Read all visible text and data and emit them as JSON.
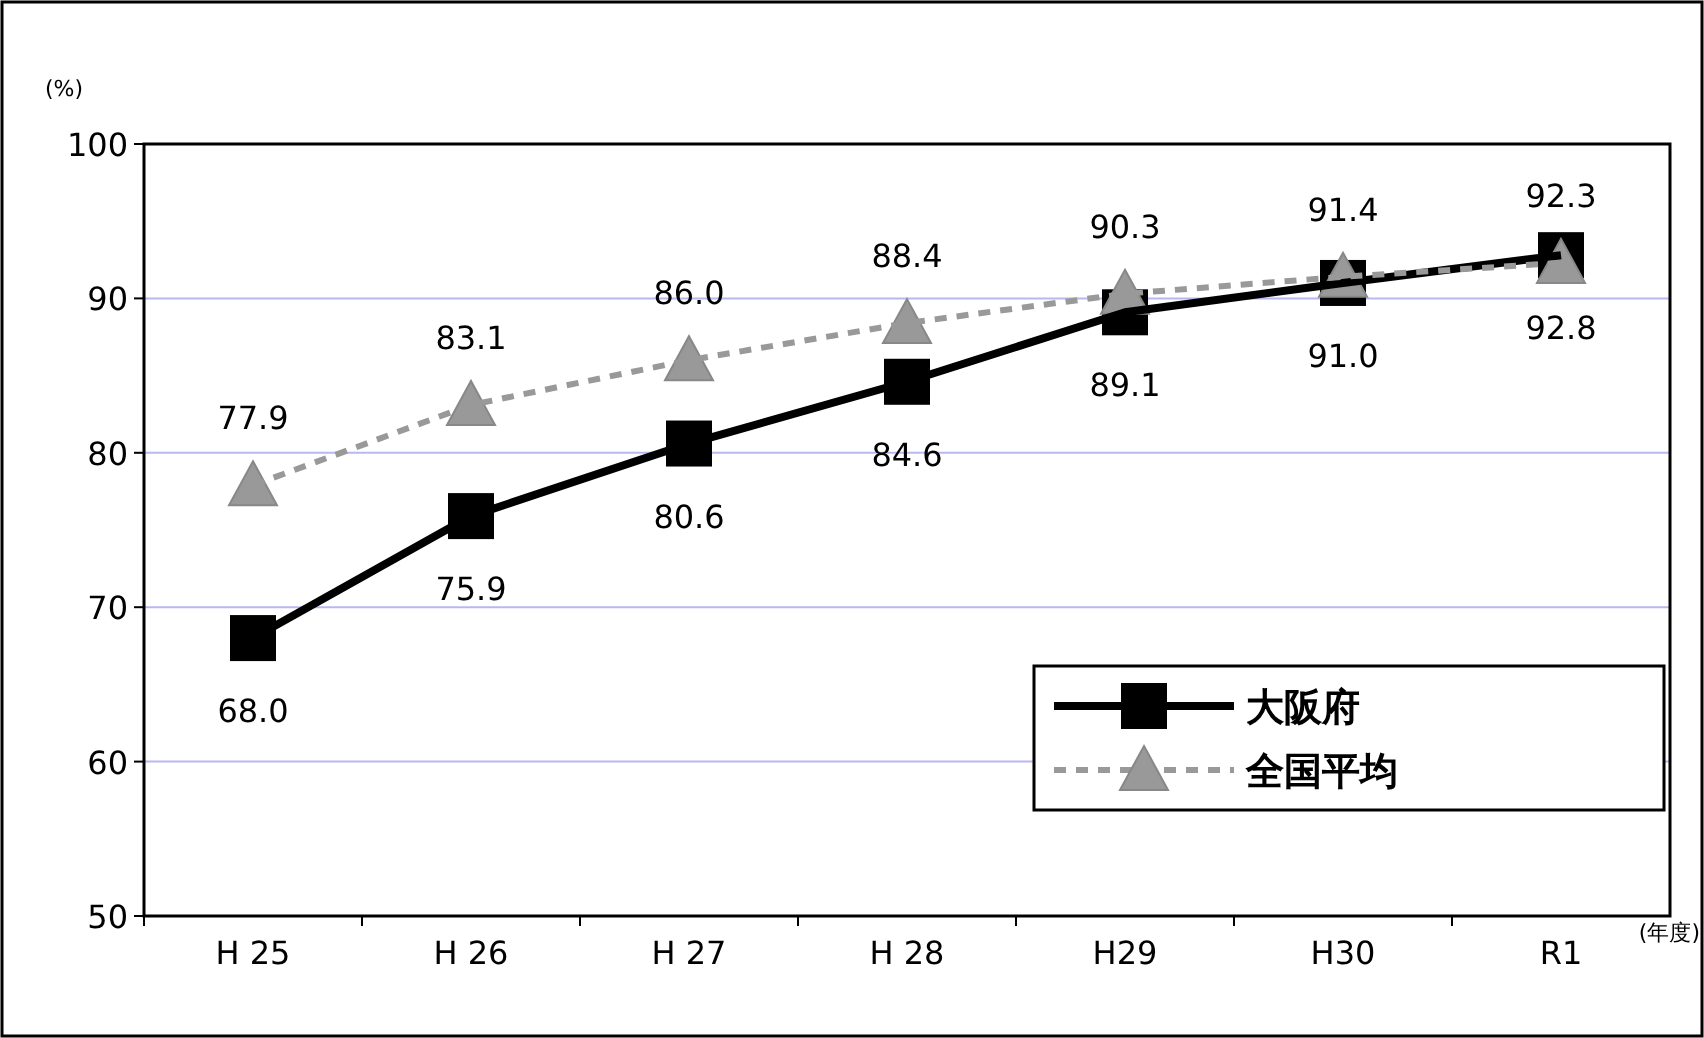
{
  "chart_data": {
    "type": "line",
    "xlabel": "(年度)",
    "ylabel": "(%)",
    "categories": [
      "H 25",
      "H 26",
      "H 27",
      "H 28",
      "H29",
      "H30",
      "R1"
    ],
    "series": [
      {
        "name": "大阪府",
        "color": "#000000",
        "marker": "square",
        "line_style": "solid",
        "values": [
          68.0,
          75.9,
          80.6,
          84.6,
          89.1,
          91.0,
          92.8
        ],
        "value_labels": [
          "68.0",
          "75.9",
          "80.6",
          "84.6",
          "89.1",
          "91.0",
          "92.8"
        ]
      },
      {
        "name": "全国平均",
        "color": "#999999",
        "marker": "triangle",
        "line_style": "dashed",
        "values": [
          77.9,
          83.1,
          86.0,
          88.4,
          90.3,
          91.4,
          92.3
        ],
        "value_labels": [
          "77.9",
          "83.1",
          "86.0",
          "88.4",
          "90.3",
          "91.4",
          "92.3"
        ]
      }
    ],
    "ylim": [
      50,
      100
    ],
    "yticks": [
      50,
      60,
      70,
      80,
      90,
      100
    ],
    "grid": "y",
    "legend": "bottom right"
  }
}
